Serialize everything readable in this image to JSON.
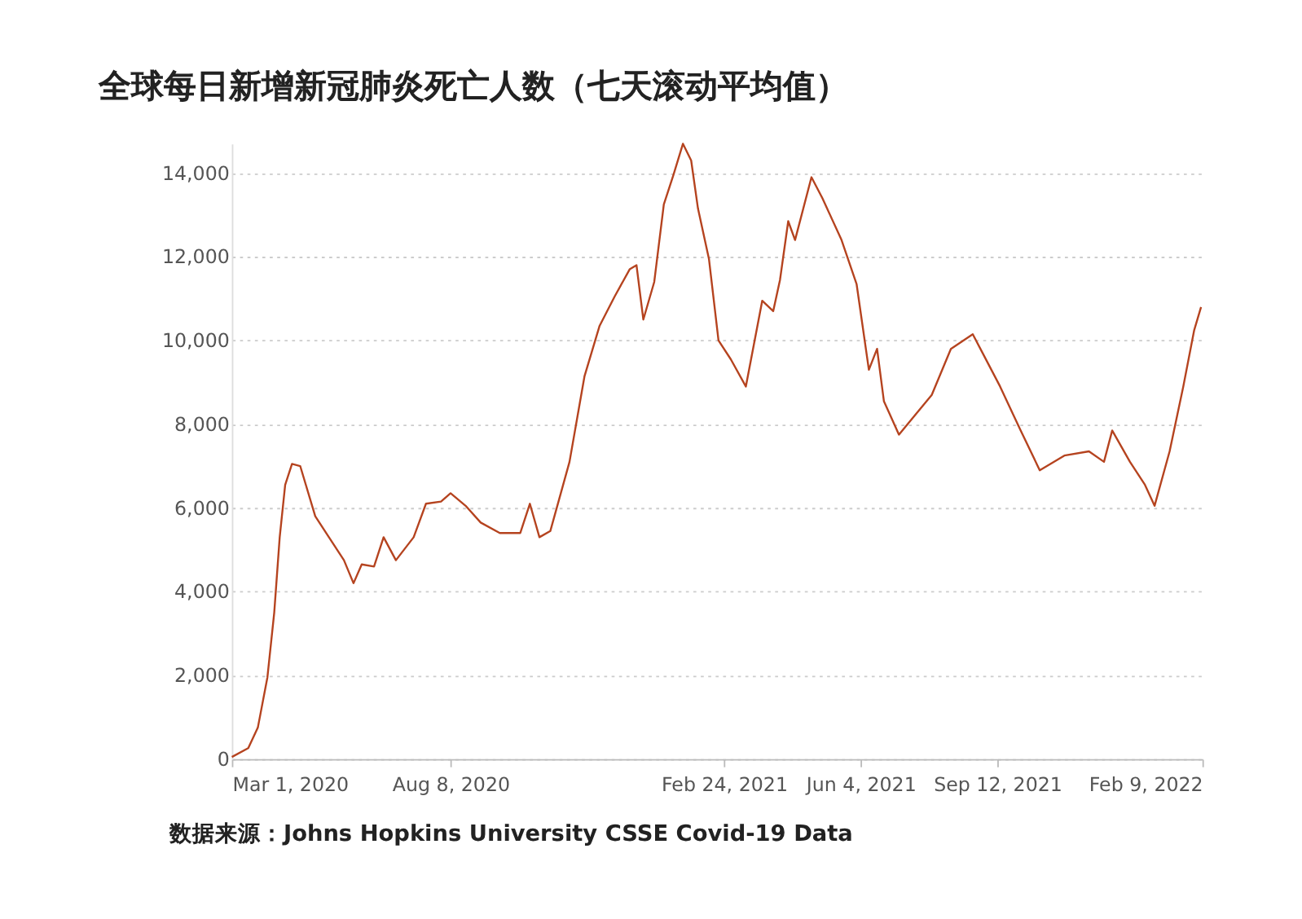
{
  "chart_data": {
    "type": "line",
    "title": "全球每日新增新冠肺炎死亡人数（七天滚动平均值）",
    "x": [
      "2020-03-01",
      "2020-03-13",
      "2020-03-20",
      "2020-03-27",
      "2020-04-01",
      "2020-04-05",
      "2020-04-09",
      "2020-04-14",
      "2020-04-20",
      "2020-05-01",
      "2020-05-11",
      "2020-05-22",
      "2020-05-29",
      "2020-06-04",
      "2020-06-13",
      "2020-06-20",
      "2020-06-29",
      "2020-07-12",
      "2020-07-21",
      "2020-08-01",
      "2020-08-08",
      "2020-08-19",
      "2020-08-30",
      "2020-09-13",
      "2020-09-28",
      "2020-10-05",
      "2020-10-12",
      "2020-10-20",
      "2020-11-03",
      "2020-11-14",
      "2020-11-25",
      "2020-12-06",
      "2020-12-17",
      "2020-12-22",
      "2020-12-27",
      "2021-01-04",
      "2021-01-11",
      "2021-01-18",
      "2021-01-25",
      "2021-01-31",
      "2021-02-05",
      "2021-02-13",
      "2021-02-20",
      "2021-03-01",
      "2021-03-12",
      "2021-03-24",
      "2021-04-01",
      "2021-04-06",
      "2021-04-12",
      "2021-04-17",
      "2021-04-29",
      "2021-05-07",
      "2021-05-21",
      "2021-06-01",
      "2021-06-10",
      "2021-06-16",
      "2021-06-21",
      "2021-07-02",
      "2021-07-26",
      "2021-08-09",
      "2021-08-25",
      "2021-09-02",
      "2021-09-14",
      "2021-09-29",
      "2021-10-13",
      "2021-10-31",
      "2021-11-18",
      "2021-11-29",
      "2021-12-05",
      "2021-12-18",
      "2021-12-29",
      "2022-01-05",
      "2022-01-16",
      "2022-01-26",
      "2022-02-03",
      "2022-02-08"
    ],
    "series": [
      {
        "color": "#b5431f",
        "values": [
          50,
          260,
          750,
          1950,
          3500,
          5300,
          6550,
          7050,
          7000,
          5800,
          5300,
          4750,
          4200,
          4650,
          4600,
          5300,
          4750,
          5300,
          6100,
          6150,
          6350,
          6050,
          5650,
          5400,
          5400,
          6100,
          5300,
          5450,
          7100,
          9150,
          10350,
          11050,
          11700,
          11800,
          10500,
          11400,
          13250,
          13950,
          14700,
          14300,
          13150,
          11950,
          10000,
          9550,
          8900,
          10950,
          10700,
          11450,
          12850,
          12400,
          13900,
          13400,
          12400,
          11350,
          9300,
          9800,
          8550,
          7750,
          8700,
          9800,
          10150,
          9650,
          8900,
          7850,
          6900,
          7250,
          7350,
          7100,
          7850,
          7100,
          6550,
          6050,
          7350,
          8900,
          10250,
          10800
        ]
      }
    ],
    "xlim": [
      "2020-03-01",
      "2022-02-09"
    ],
    "xticks": [
      {
        "value": "2020-03-01",
        "label": "Mar 1, 2020"
      },
      {
        "value": "2020-08-08",
        "label": "Aug 8, 2020"
      },
      {
        "value": "2021-02-24",
        "label": "Feb 24, 2021"
      },
      {
        "value": "2021-06-04",
        "label": "Jun 4, 2021"
      },
      {
        "value": "2021-09-12",
        "label": "Sep 12, 2021"
      },
      {
        "value": "2022-02-09",
        "label": "Feb 9, 2022"
      }
    ],
    "ylim": [
      0,
      14700
    ],
    "yticks": [
      {
        "value": 0,
        "label": "0"
      },
      {
        "value": 2000,
        "label": "2,000"
      },
      {
        "value": 4000,
        "label": "4,000"
      },
      {
        "value": 6000,
        "label": "6,000"
      },
      {
        "value": 8000,
        "label": "8,000"
      },
      {
        "value": 10000,
        "label": "10,000"
      },
      {
        "value": 12000,
        "label": "12,000"
      },
      {
        "value": 14000,
        "label": "14,000"
      }
    ],
    "grid": "y",
    "annotations": [
      "数据来源：Johns Hopkins University CSSE Covid-19 Data"
    ]
  }
}
